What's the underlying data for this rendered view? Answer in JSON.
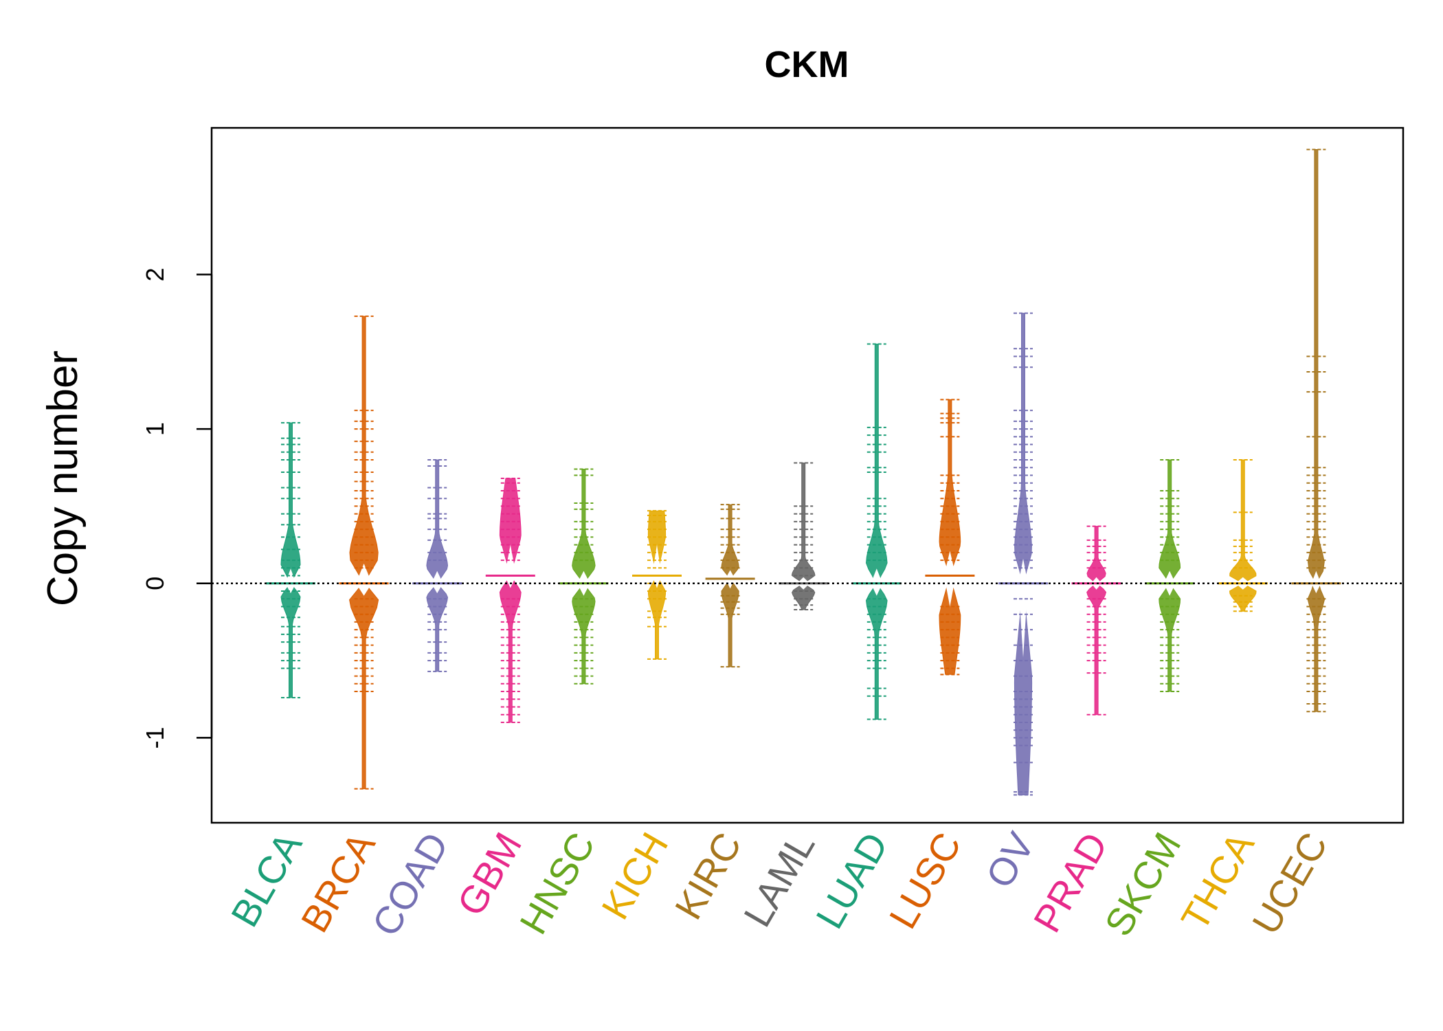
{
  "chart_data": {
    "type": "beanplot",
    "title": "CKM",
    "xlabel": "",
    "ylabel": "Copy number",
    "ylim": [
      -1.55,
      2.95
    ],
    "yticks": [
      -1,
      0,
      1,
      2
    ],
    "reference_line": 0,
    "grid": false,
    "legend": "none",
    "series": [
      {
        "name": "BLCA",
        "color": "#1B9E77",
        "min": -0.74,
        "max": 1.04,
        "q1": -0.08,
        "median": 0.0,
        "q3": 0.12,
        "spread": 0.5,
        "points": [
          1.04,
          0.94,
          0.9,
          0.85,
          0.8,
          0.72,
          0.62,
          0.55,
          0.45,
          0.38,
          0.3,
          0.22,
          0.15,
          0.1,
          0.05,
          -0.05,
          -0.1,
          -0.15,
          -0.22,
          -0.28,
          -0.33,
          -0.38,
          -0.45,
          -0.5,
          -0.55,
          -0.74
        ]
      },
      {
        "name": "BRCA",
        "color": "#D95F02",
        "min": -1.33,
        "max": 1.73,
        "q1": -0.1,
        "median": 0.0,
        "q3": 0.16,
        "spread": 0.75,
        "points": [
          1.73,
          1.12,
          1.05,
          1.0,
          0.92,
          0.85,
          0.8,
          0.72,
          0.66,
          0.6,
          0.55,
          0.5,
          0.45,
          0.4,
          0.35,
          0.3,
          0.25,
          0.2,
          0.15,
          0.1,
          -0.1,
          -0.15,
          -0.2,
          -0.25,
          -0.3,
          -0.35,
          -0.4,
          -0.45,
          -0.5,
          -0.55,
          -0.6,
          -0.65,
          -0.7,
          -1.33
        ]
      },
      {
        "name": "COAD",
        "color": "#7570B3",
        "min": -0.57,
        "max": 0.8,
        "q1": -0.08,
        "median": 0.0,
        "q3": 0.1,
        "spread": 0.55,
        "points": [
          0.8,
          0.76,
          0.62,
          0.55,
          0.45,
          0.42,
          0.35,
          0.28,
          0.2,
          0.15,
          -0.1,
          -0.15,
          -0.2,
          -0.25,
          -0.3,
          -0.38,
          -0.45,
          -0.5,
          -0.57
        ]
      },
      {
        "name": "GBM",
        "color": "#E7298A",
        "min": -0.9,
        "max": 0.68,
        "q1": -0.05,
        "median": 0.05,
        "q3": 0.3,
        "spread": 0.55,
        "points": [
          0.68,
          0.65,
          0.6,
          0.55,
          0.5,
          0.45,
          0.4,
          0.35,
          0.3,
          0.25,
          0.2,
          0.15,
          -0.1,
          -0.15,
          -0.2,
          -0.25,
          -0.3,
          -0.35,
          -0.4,
          -0.45,
          -0.5,
          -0.55,
          -0.6,
          -0.65,
          -0.7,
          -0.75,
          -0.8,
          -0.85,
          -0.9
        ]
      },
      {
        "name": "HNSC",
        "color": "#66A61E",
        "min": -0.65,
        "max": 0.74,
        "q1": -0.1,
        "median": 0.0,
        "q3": 0.1,
        "spread": 0.6,
        "points": [
          0.74,
          0.7,
          0.52,
          0.48,
          0.4,
          0.35,
          0.3,
          0.25,
          0.2,
          0.15,
          -0.1,
          -0.15,
          -0.2,
          -0.25,
          -0.3,
          -0.35,
          -0.4,
          -0.45,
          -0.5,
          -0.55,
          -0.6,
          -0.65
        ]
      },
      {
        "name": "KICH",
        "color": "#E6AB02",
        "min": -0.49,
        "max": 0.47,
        "q1": -0.05,
        "median": 0.05,
        "q3": 0.3,
        "spread": 0.45,
        "points": [
          0.47,
          0.44,
          0.4,
          0.35,
          0.3,
          0.25,
          0.2,
          0.15,
          0.1,
          0.05,
          0.0,
          -0.05,
          -0.1,
          -0.18,
          -0.22,
          -0.28,
          -0.49
        ]
      },
      {
        "name": "KIRC",
        "color": "#A6761D",
        "min": -0.54,
        "max": 0.51,
        "q1": -0.05,
        "median": 0.03,
        "q3": 0.1,
        "spread": 0.45,
        "points": [
          0.51,
          0.48,
          0.42,
          0.35,
          0.3,
          0.25,
          0.2,
          0.15,
          0.1,
          -0.08,
          -0.12,
          -0.16,
          -0.2,
          -0.54
        ]
      },
      {
        "name": "LAML",
        "color": "#666666",
        "min": -0.17,
        "max": 0.78,
        "q1": -0.05,
        "median": 0.0,
        "q3": 0.05,
        "spread": 0.6,
        "points": [
          0.78,
          0.5,
          0.45,
          0.4,
          0.35,
          0.3,
          0.25,
          0.2,
          0.15,
          0.1,
          0.05,
          -0.05,
          -0.1,
          -0.14,
          -0.17
        ]
      },
      {
        "name": "LUAD",
        "color": "#1B9E77",
        "min": -0.88,
        "max": 1.55,
        "q1": -0.1,
        "median": 0.0,
        "q3": 0.12,
        "spread": 0.55,
        "points": [
          1.55,
          1.01,
          0.96,
          0.9,
          0.85,
          0.75,
          0.72,
          0.55,
          0.5,
          0.45,
          0.4,
          0.35,
          0.3,
          0.25,
          0.2,
          0.15,
          -0.1,
          -0.15,
          -0.2,
          -0.25,
          -0.3,
          -0.35,
          -0.4,
          -0.45,
          -0.5,
          -0.55,
          -0.68,
          -0.73,
          -0.88
        ]
      },
      {
        "name": "LUSC",
        "color": "#D95F02",
        "min": -0.59,
        "max": 1.19,
        "q1": -0.2,
        "median": 0.05,
        "q3": 0.25,
        "spread": 0.55,
        "points": [
          1.19,
          1.1,
          1.07,
          1.04,
          0.95,
          0.7,
          0.65,
          0.6,
          0.55,
          0.5,
          0.45,
          0.4,
          0.35,
          0.3,
          0.25,
          0.2,
          0.15,
          -0.15,
          -0.2,
          -0.25,
          -0.3,
          -0.35,
          -0.4,
          -0.45,
          -0.5,
          -0.55,
          -0.59
        ]
      },
      {
        "name": "OV",
        "color": "#7570B3",
        "min": -1.37,
        "max": 1.75,
        "q1": -0.6,
        "median": 0.0,
        "q3": 0.2,
        "spread": 0.45,
        "points": [
          1.75,
          1.52,
          1.47,
          1.4,
          1.12,
          1.05,
          1.0,
          0.95,
          0.9,
          0.85,
          0.8,
          0.75,
          0.7,
          0.65,
          0.6,
          0.55,
          0.5,
          0.45,
          0.4,
          0.35,
          0.3,
          0.25,
          0.2,
          0.15,
          0.1,
          -0.1,
          -0.2,
          -0.3,
          -0.4,
          -0.5,
          -0.6,
          -0.7,
          -0.75,
          -0.8,
          -0.85,
          -0.9,
          -0.95,
          -1.0,
          -1.05,
          -1.16,
          -1.35,
          -1.37
        ]
      },
      {
        "name": "PRAD",
        "color": "#E7298A",
        "min": -0.85,
        "max": 0.37,
        "q1": -0.05,
        "median": 0.0,
        "q3": 0.05,
        "spread": 0.5,
        "points": [
          0.37,
          0.28,
          0.24,
          0.2,
          0.15,
          0.1,
          -0.1,
          -0.15,
          -0.2,
          -0.25,
          -0.3,
          -0.35,
          -0.4,
          -0.45,
          -0.5,
          -0.58,
          -0.85
        ]
      },
      {
        "name": "SKCM",
        "color": "#66A61E",
        "min": -0.7,
        "max": 0.8,
        "q1": -0.1,
        "median": 0.0,
        "q3": 0.1,
        "spread": 0.55,
        "points": [
          0.8,
          0.6,
          0.55,
          0.5,
          0.45,
          0.4,
          0.35,
          0.3,
          0.25,
          0.2,
          0.15,
          -0.1,
          -0.15,
          -0.2,
          -0.25,
          -0.3,
          -0.35,
          -0.4,
          -0.45,
          -0.5,
          -0.55,
          -0.6,
          -0.65,
          -0.7
        ]
      },
      {
        "name": "THCA",
        "color": "#E6AB02",
        "min": -0.18,
        "max": 0.8,
        "q1": -0.05,
        "median": 0.0,
        "q3": 0.05,
        "spread": 0.7,
        "points": [
          0.8,
          0.46,
          0.28,
          0.24,
          0.2,
          0.15,
          0.1,
          -0.08,
          -0.12,
          -0.15,
          -0.18
        ]
      },
      {
        "name": "UCEC",
        "color": "#A6761D",
        "min": -0.83,
        "max": 2.81,
        "q1": -0.08,
        "median": 0.0,
        "q3": 0.1,
        "spread": 0.45,
        "points": [
          2.81,
          1.47,
          1.37,
          1.24,
          0.95,
          0.75,
          0.7,
          0.65,
          0.6,
          0.55,
          0.5,
          0.45,
          0.4,
          0.35,
          0.3,
          0.25,
          0.2,
          0.15,
          0.1,
          -0.1,
          -0.15,
          -0.2,
          -0.25,
          -0.3,
          -0.35,
          -0.4,
          -0.45,
          -0.5,
          -0.55,
          -0.6,
          -0.65,
          -0.7,
          -0.78,
          -0.83
        ]
      }
    ]
  }
}
